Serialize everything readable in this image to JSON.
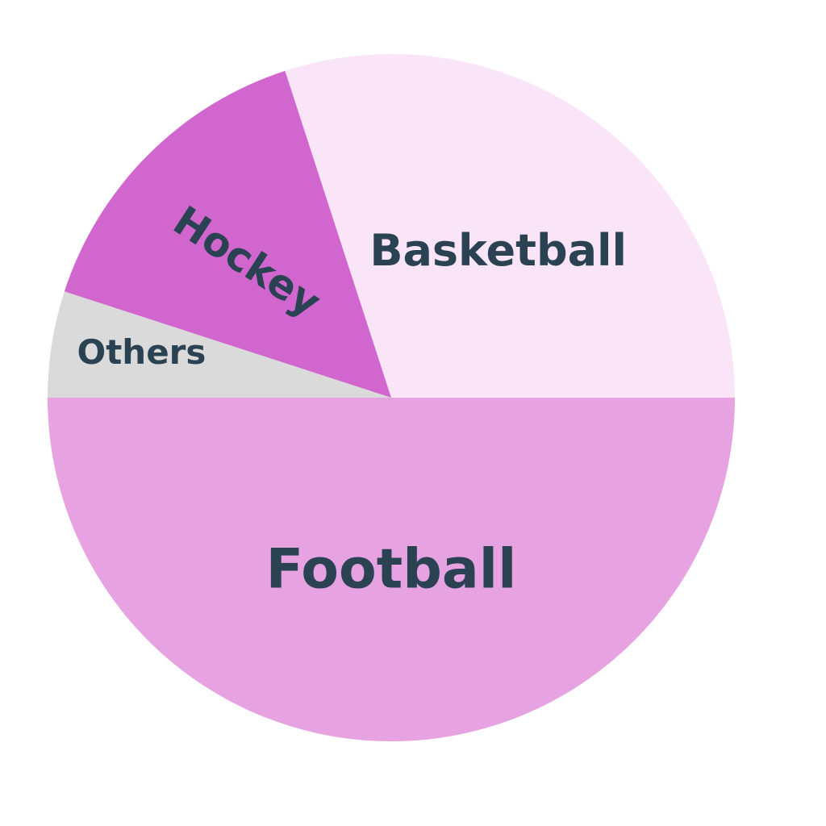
{
  "chart_data": {
    "type": "pie",
    "title": "",
    "start_angle_deg": 0,
    "direction": "counterclockwise",
    "slices": [
      {
        "label": "Basketball",
        "value": 30,
        "color": "#f9e5f7"
      },
      {
        "label": "Hockey",
        "value": 15,
        "color": "#d166cf"
      },
      {
        "label": "Others",
        "value": 5,
        "color": "#dadada"
      },
      {
        "label": "Football",
        "value": 50,
        "color": "#e6a2e1"
      }
    ],
    "label_color": "#2b4252",
    "background_color": "#ffffff"
  }
}
